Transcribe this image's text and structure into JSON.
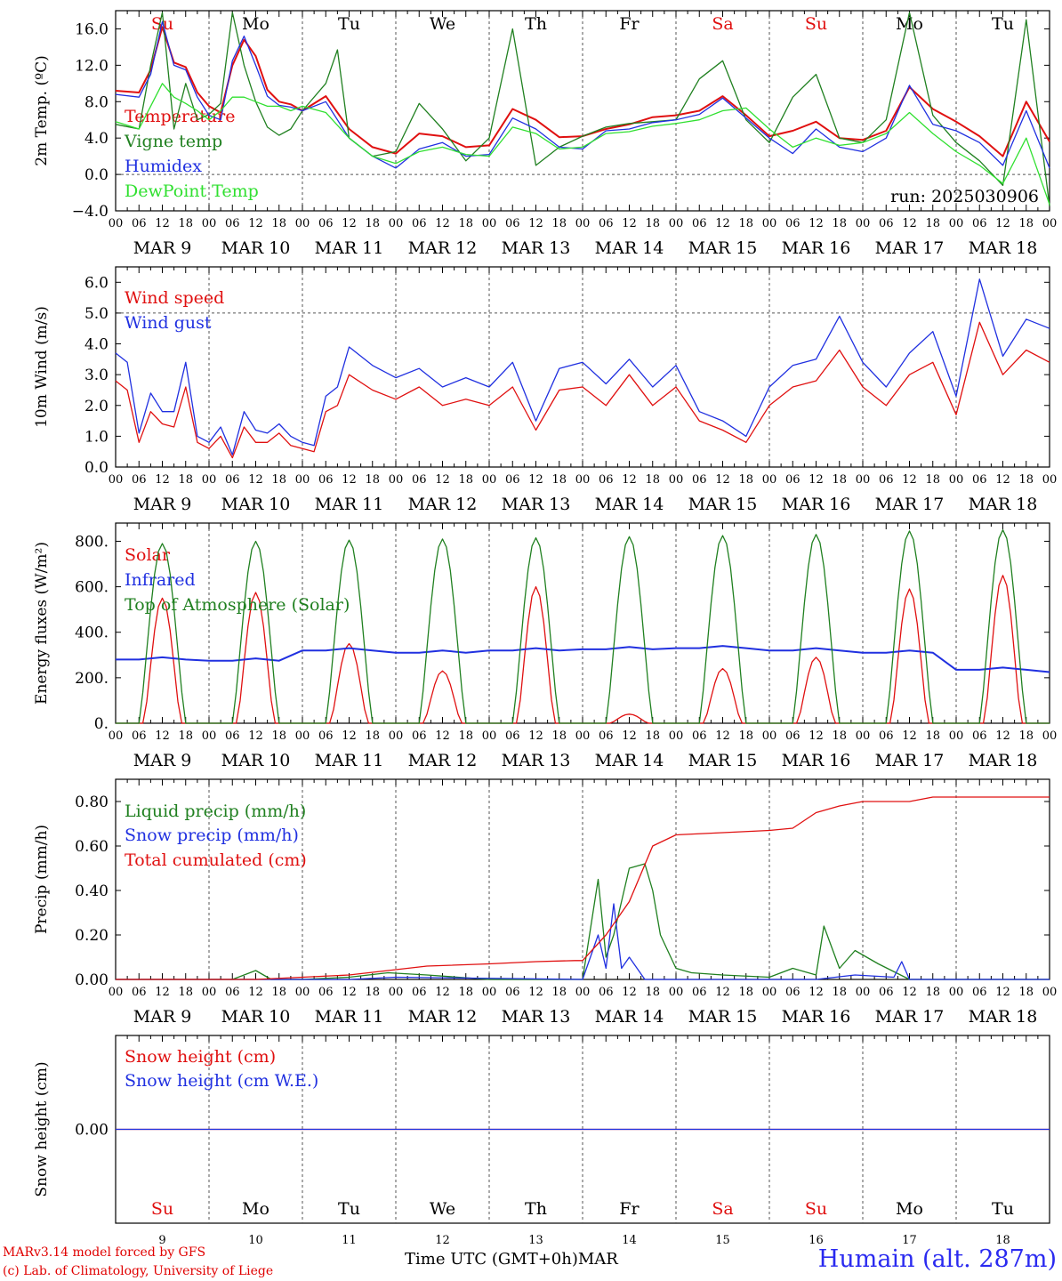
{
  "colors": {
    "temperature": "#e01010",
    "vigne_temp": "#208020",
    "humidex": "#2030e0",
    "dewpoint": "#30e030",
    "axis": "#000000",
    "grid": "#555555",
    "weekend": "#e01010",
    "weekday": "#000000"
  },
  "axis_time": {
    "hour_ticks": [
      "00",
      "06",
      "12",
      "18"
    ],
    "final_tick": "00",
    "date_labels": [
      "MAR  9",
      "MAR 10",
      "MAR 11",
      "MAR 12",
      "MAR 13",
      "MAR 14",
      "MAR 15",
      "MAR 16",
      "MAR 17",
      "MAR 18"
    ],
    "weekday_labels": [
      "Su",
      "Mo",
      "Tu",
      "We",
      "Th",
      "Fr",
      "Sa",
      "Su",
      "Mo",
      "Tu"
    ],
    "weekend_flags": [
      true,
      false,
      false,
      false,
      false,
      false,
      true,
      true,
      false,
      false
    ],
    "day_numbers": [
      "9",
      "10",
      "11",
      "12",
      "13",
      "14",
      "15",
      "16",
      "17",
      "18"
    ]
  },
  "footer": {
    "credit_line1": "MARv3.14 model forced by GFS",
    "credit_line2": "(c) Lab. of Climatology, University of Liege",
    "xlabel": "Time UTC (GMT+0h)",
    "month": "MAR",
    "station": "Humain (alt. 287m)"
  },
  "chart_data": [
    {
      "type": "line",
      "ylabel": "2m Temp. (ºC)",
      "ylim": [
        -4,
        18
      ],
      "yticks": [
        -4,
        0,
        4,
        8,
        12,
        16
      ],
      "ytick_labels": [
        "−4.0",
        "0.0",
        "4.0",
        "8.0",
        "12.0",
        "16.0"
      ],
      "annotation": "run: 2025030906",
      "x_unit": "hours since MAR 9 00 UTC",
      "series": [
        {
          "name": "Temperature",
          "color": "#e01010",
          "x": [
            0,
            6,
            9,
            12,
            15,
            18,
            21,
            24,
            27,
            30,
            33,
            36,
            39,
            42,
            45,
            48,
            54,
            60,
            66,
            72,
            78,
            84,
            90,
            96,
            102,
            108,
            114,
            120,
            126,
            132,
            138,
            144,
            150,
            156,
            162,
            168,
            174,
            180,
            186,
            192,
            198,
            204,
            210,
            216,
            222,
            228,
            234,
            240
          ],
          "y": [
            9.2,
            9.0,
            11.5,
            16.2,
            12.3,
            11.8,
            9.0,
            7.5,
            6.8,
            12.0,
            14.8,
            13.0,
            9.3,
            8.0,
            7.7,
            7.0,
            8.6,
            5.0,
            3.0,
            2.3,
            4.5,
            4.2,
            3.0,
            3.2,
            7.2,
            6.0,
            4.1,
            4.2,
            5.0,
            5.5,
            6.3,
            6.5,
            7.0,
            8.6,
            6.5,
            4.2,
            4.8,
            5.8,
            4.0,
            3.8,
            4.8,
            9.6,
            7.2,
            5.8,
            4.2,
            2.0,
            8.0,
            3.6
          ]
        },
        {
          "name": "Vigne temp",
          "color": "#208020",
          "x": [
            0,
            6,
            9,
            12,
            15,
            18,
            21,
            24,
            27,
            30,
            33,
            36,
            39,
            42,
            45,
            48,
            54,
            57,
            60,
            66,
            72,
            78,
            84,
            90,
            96,
            102,
            108,
            114,
            120,
            126,
            132,
            138,
            144,
            150,
            156,
            162,
            168,
            174,
            180,
            186,
            192,
            198,
            204,
            210,
            216,
            222,
            228,
            234,
            240
          ],
          "y": [
            5.5,
            5.0,
            12.0,
            17.8,
            5.0,
            10.0,
            6.0,
            6.6,
            7.8,
            17.8,
            12.0,
            8.0,
            5.2,
            4.3,
            5.0,
            7.0,
            10.0,
            13.7,
            4.0,
            2.0,
            2.5,
            7.8,
            5.0,
            1.5,
            4.0,
            16.0,
            1.0,
            3.0,
            4.2,
            5.2,
            5.6,
            5.8,
            6.0,
            10.5,
            12.5,
            6.0,
            3.5,
            8.5,
            11.0,
            4.0,
            3.5,
            6.0,
            17.8,
            6.5,
            3.5,
            1.5,
            -1.2,
            17.0,
            -3.5
          ]
        },
        {
          "name": "Humidex",
          "color": "#2030e0",
          "x": [
            0,
            6,
            9,
            12,
            15,
            18,
            21,
            24,
            27,
            30,
            33,
            36,
            39,
            42,
            45,
            48,
            54,
            60,
            66,
            72,
            78,
            84,
            90,
            96,
            102,
            108,
            114,
            120,
            126,
            132,
            138,
            144,
            150,
            156,
            162,
            168,
            174,
            180,
            186,
            192,
            198,
            204,
            210,
            216,
            222,
            228,
            234,
            240
          ],
          "y": [
            8.8,
            8.5,
            11.0,
            16.8,
            12.0,
            11.5,
            8.5,
            6.5,
            6.0,
            12.5,
            15.2,
            12.0,
            8.6,
            7.6,
            7.4,
            7.0,
            8.0,
            4.0,
            2.0,
            0.7,
            2.8,
            3.5,
            2.0,
            2.2,
            6.2,
            5.0,
            3.0,
            2.8,
            4.8,
            5.0,
            5.7,
            6.0,
            6.6,
            8.4,
            6.2,
            4.0,
            2.3,
            5.0,
            3.0,
            2.5,
            4.0,
            9.8,
            5.5,
            4.8,
            3.5,
            1.0,
            7.0,
            0.7
          ]
        },
        {
          "name": "DewPoint Temp",
          "color": "#30e030",
          "x": [
            0,
            6,
            9,
            12,
            15,
            18,
            21,
            24,
            27,
            30,
            33,
            36,
            39,
            42,
            45,
            48,
            54,
            60,
            66,
            72,
            78,
            84,
            90,
            96,
            102,
            108,
            114,
            120,
            126,
            132,
            138,
            144,
            150,
            156,
            162,
            168,
            174,
            180,
            186,
            192,
            198,
            204,
            210,
            216,
            222,
            228,
            234,
            240
          ],
          "y": [
            5.8,
            5.0,
            7.5,
            10.0,
            8.5,
            7.8,
            7.0,
            6.0,
            7.0,
            8.5,
            8.5,
            8.0,
            7.5,
            7.5,
            7.0,
            7.5,
            6.8,
            4.0,
            2.0,
            1.2,
            2.5,
            3.0,
            2.2,
            2.0,
            5.2,
            4.5,
            2.8,
            3.0,
            4.5,
            4.7,
            5.3,
            5.6,
            6.0,
            7.0,
            7.3,
            5.0,
            3.0,
            4.0,
            3.2,
            3.5,
            4.5,
            6.8,
            4.5,
            2.5,
            1.0,
            -1.0,
            4.0,
            -3.3
          ]
        }
      ]
    },
    {
      "type": "line",
      "ylabel": "10m Wind (m/s)",
      "ylim": [
        0,
        6.5
      ],
      "yticks": [
        0,
        1,
        2,
        3,
        4,
        5,
        6
      ],
      "ytick_labels": [
        "0.0",
        "1.0",
        "2.0",
        "3.0",
        "4.0",
        "5.0",
        "6.0"
      ],
      "reference_line": 5.0,
      "series": [
        {
          "name": "Wind speed",
          "color": "#e01010",
          "x": [
            0,
            3,
            6,
            9,
            12,
            15,
            18,
            21,
            24,
            27,
            30,
            33,
            36,
            39,
            42,
            45,
            48,
            51,
            54,
            57,
            60,
            66,
            72,
            78,
            84,
            90,
            96,
            102,
            108,
            114,
            120,
            126,
            132,
            138,
            144,
            150,
            156,
            162,
            168,
            174,
            180,
            186,
            192,
            198,
            204,
            210,
            216,
            222,
            228,
            234,
            240
          ],
          "y": [
            2.8,
            2.5,
            0.8,
            1.8,
            1.4,
            1.3,
            2.6,
            0.8,
            0.6,
            1.0,
            0.3,
            1.3,
            0.8,
            0.8,
            1.1,
            0.7,
            0.6,
            0.5,
            1.8,
            2.0,
            3.0,
            2.5,
            2.2,
            2.6,
            2.0,
            2.2,
            2.0,
            2.6,
            1.2,
            2.5,
            2.6,
            2.0,
            3.0,
            2.0,
            2.6,
            1.5,
            1.2,
            0.8,
            2.0,
            2.6,
            2.8,
            3.8,
            2.6,
            2.0,
            3.0,
            3.4,
            1.7,
            4.7,
            3.0,
            3.8,
            3.4
          ]
        },
        {
          "name": "Wind gust",
          "color": "#2030e0",
          "x": [
            0,
            3,
            6,
            9,
            12,
            15,
            18,
            21,
            24,
            27,
            30,
            33,
            36,
            39,
            42,
            45,
            48,
            51,
            54,
            57,
            60,
            66,
            72,
            78,
            84,
            90,
            96,
            102,
            108,
            114,
            120,
            126,
            132,
            138,
            144,
            150,
            156,
            162,
            168,
            174,
            180,
            186,
            192,
            198,
            204,
            210,
            216,
            222,
            228,
            234,
            240
          ],
          "y": [
            3.7,
            3.4,
            1.1,
            2.4,
            1.8,
            1.8,
            3.4,
            1.0,
            0.8,
            1.3,
            0.4,
            1.8,
            1.2,
            1.1,
            1.4,
            1.0,
            0.8,
            0.7,
            2.3,
            2.6,
            3.9,
            3.3,
            2.9,
            3.2,
            2.6,
            2.9,
            2.6,
            3.4,
            1.5,
            3.2,
            3.4,
            2.7,
            3.5,
            2.6,
            3.3,
            1.8,
            1.5,
            1.0,
            2.6,
            3.3,
            3.5,
            4.9,
            3.4,
            2.6,
            3.7,
            4.4,
            2.3,
            6.1,
            3.6,
            4.8,
            4.5
          ]
        }
      ]
    },
    {
      "type": "line",
      "ylabel": "Energy fluxes (W/m²)",
      "ylim": [
        0,
        880
      ],
      "yticks": [
        0,
        200,
        400,
        600,
        800
      ],
      "ytick_labels": [
        "0.",
        "200.",
        "400.",
        "600.",
        "800."
      ],
      "series": [
        {
          "name": "Solar",
          "color": "#e01010",
          "daily_peaks": [
            550,
            575,
            350,
            230,
            600,
            40,
            240,
            290,
            590,
            650
          ]
        },
        {
          "name": "Infrared",
          "color": "#2030e0",
          "daily_levels": [
            280,
            275,
            320,
            310,
            320,
            325,
            330,
            320,
            310,
            235
          ]
        },
        {
          "name": "Top of Atmosphere (Solar)",
          "color": "#208020",
          "daily_peaks": [
            790,
            800,
            805,
            810,
            815,
            820,
            825,
            830,
            845,
            850
          ]
        }
      ]
    },
    {
      "type": "line",
      "ylabel": "Precip (mm/h)",
      "ylim": [
        0,
        0.9
      ],
      "yticks": [
        0,
        0.2,
        0.4,
        0.6,
        0.8
      ],
      "ytick_labels": [
        "0.00",
        "0.20",
        "0.40",
        "0.60",
        "0.80"
      ],
      "series": [
        {
          "name": "Liquid precip (mm/h)",
          "color": "#208020",
          "x": [
            0,
            30,
            36,
            40,
            48,
            60,
            70,
            80,
            96,
            120,
            124,
            126,
            128,
            132,
            136,
            138,
            140,
            144,
            148,
            156,
            168,
            174,
            180,
            182,
            186,
            190,
            196,
            204,
            240
          ],
          "y": [
            0,
            0,
            0.04,
            0,
            0,
            0.01,
            0.03,
            0.02,
            0,
            0,
            0.45,
            0.1,
            0.2,
            0.5,
            0.52,
            0.4,
            0.2,
            0.05,
            0.03,
            0.02,
            0.01,
            0.05,
            0.02,
            0.24,
            0.05,
            0.13,
            0.07,
            0,
            0
          ]
        },
        {
          "name": "Snow precip (mm/h)",
          "color": "#2030e0",
          "x": [
            0,
            60,
            72,
            120,
            124,
            126,
            128,
            130,
            132,
            136,
            180,
            190,
            200,
            202,
            204,
            240
          ],
          "y": [
            0,
            0,
            0.01,
            0,
            0.2,
            0.05,
            0.34,
            0.05,
            0.1,
            0,
            0,
            0.02,
            0.01,
            0.08,
            0,
            0
          ]
        },
        {
          "name": "Total cumulated (cm)",
          "color": "#e01010",
          "x": [
            0,
            36,
            48,
            60,
            70,
            80,
            96,
            108,
            118,
            120,
            126,
            132,
            138,
            144,
            156,
            168,
            174,
            180,
            186,
            192,
            204,
            210,
            240
          ],
          "y": [
            0,
            0,
            0.01,
            0.02,
            0.04,
            0.06,
            0.07,
            0.08,
            0.085,
            0.085,
            0.2,
            0.35,
            0.6,
            0.65,
            0.66,
            0.67,
            0.68,
            0.75,
            0.78,
            0.8,
            0.8,
            0.82,
            0.82
          ]
        }
      ]
    },
    {
      "type": "line",
      "ylabel": "Snow height (cm)",
      "ylim": [
        -1,
        1
      ],
      "yticks": [
        0
      ],
      "ytick_labels": [
        "0.00"
      ],
      "series": [
        {
          "name": "Snow height (cm)",
          "color": "#e01010",
          "x": [
            0,
            240
          ],
          "y": [
            0,
            0
          ]
        },
        {
          "name": "Snow height (cm W.E.)",
          "color": "#2030e0",
          "x": [
            0,
            240
          ],
          "y": [
            0,
            0
          ]
        }
      ]
    }
  ]
}
